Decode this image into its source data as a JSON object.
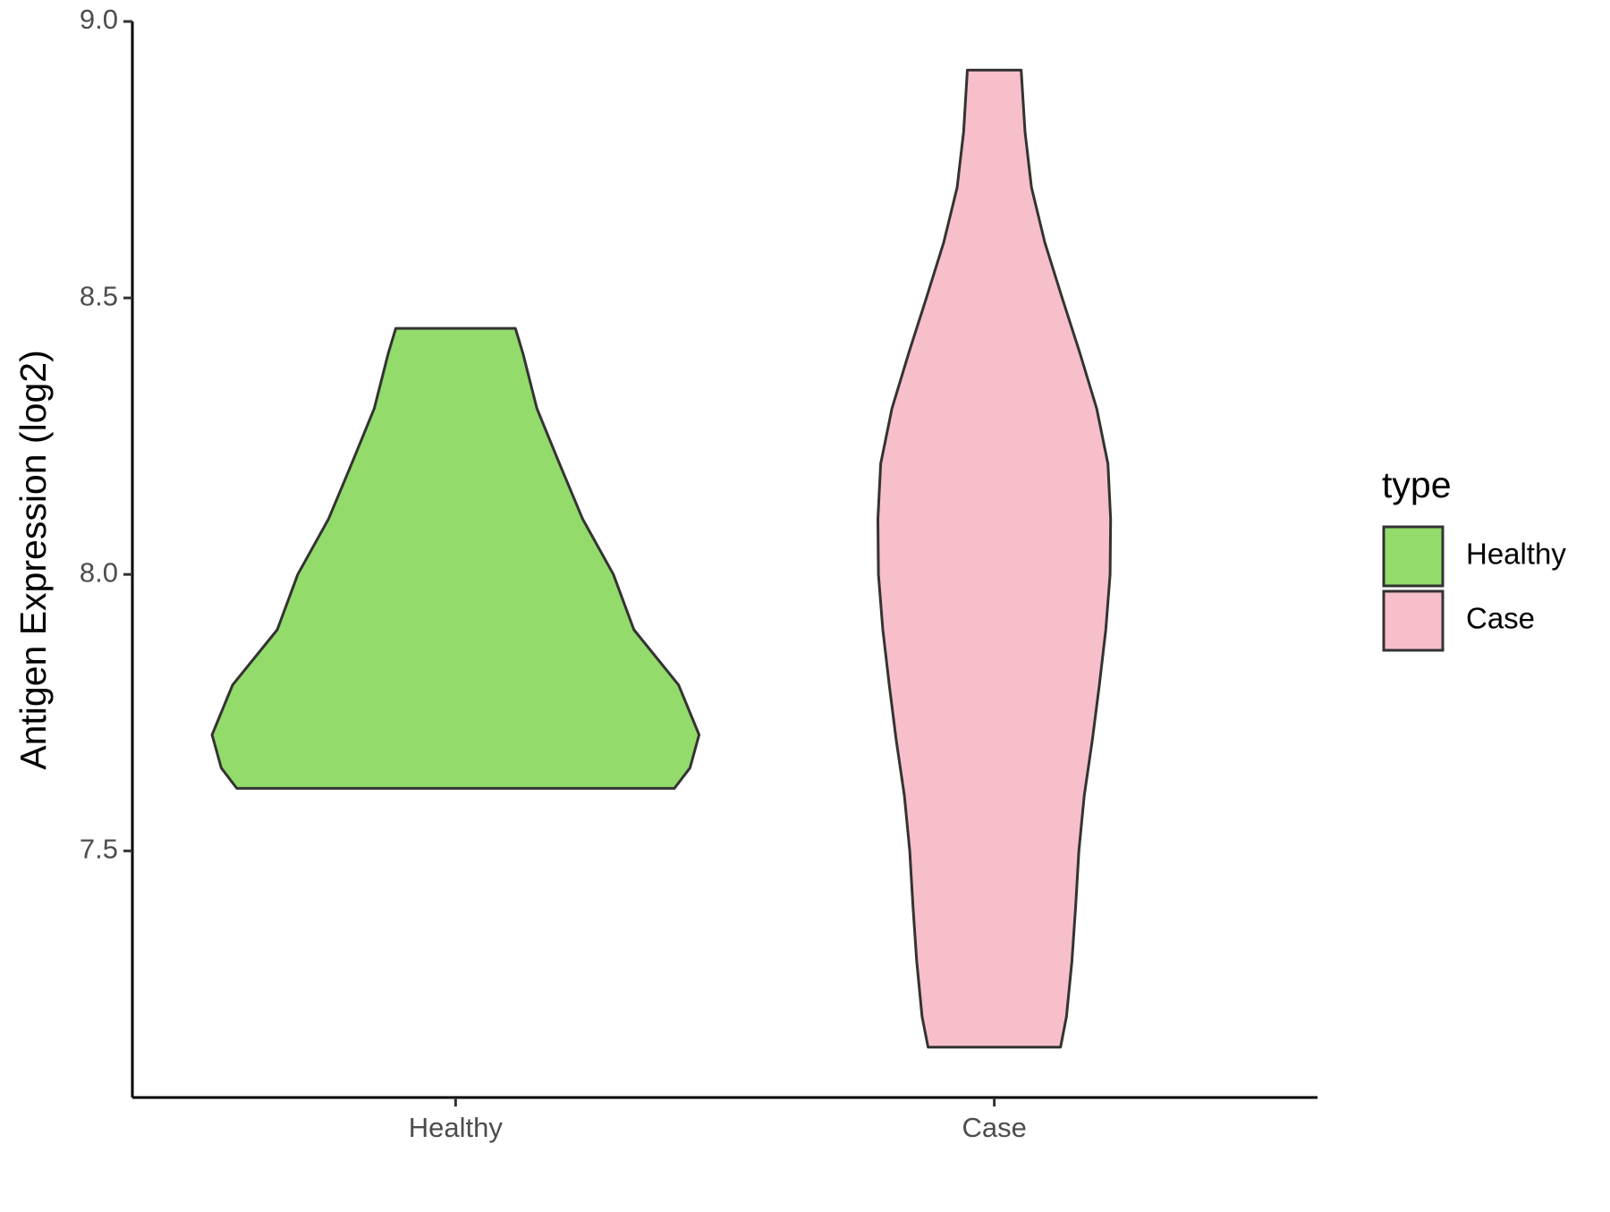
{
  "chart_data": {
    "type": "violin",
    "y_label": "Antigen Expression (log2)",
    "categories": [
      "Healthy",
      "Case"
    ],
    "legend_title": "type",
    "legend_position": "right",
    "ylim": [
      7.054,
      9.0
    ],
    "yticks": [
      7.5,
      {
        "value": 8,
        "label": "8.0"
      },
      8.5,
      {
        "value": 9,
        "label": "9.0"
      }
    ],
    "series": [
      {
        "name": "Healthy",
        "color": "#93db6b",
        "y": [
          7.613,
          7.65,
          7.71,
          7.8,
          7.9,
          8.0,
          8.1,
          8.2,
          8.3,
          8.4,
          8.445
        ],
        "width": [
          0.406,
          0.435,
          0.452,
          0.414,
          0.331,
          0.293,
          0.236,
          0.193,
          0.151,
          0.125,
          0.111
        ]
      },
      {
        "name": "Case",
        "color": "#f7bfca",
        "y": [
          7.145,
          7.2,
          7.3,
          7.4,
          7.5,
          7.6,
          7.7,
          7.8,
          7.9,
          8.0,
          8.1,
          8.2,
          8.3,
          8.4,
          8.5,
          8.6,
          8.7,
          8.8,
          8.912
        ],
        "width": [
          0.123,
          0.134,
          0.144,
          0.151,
          0.157,
          0.167,
          0.182,
          0.195,
          0.207,
          0.215,
          0.216,
          0.211,
          0.19,
          0.159,
          0.126,
          0.094,
          0.069,
          0.057,
          0.05
        ]
      }
    ]
  }
}
